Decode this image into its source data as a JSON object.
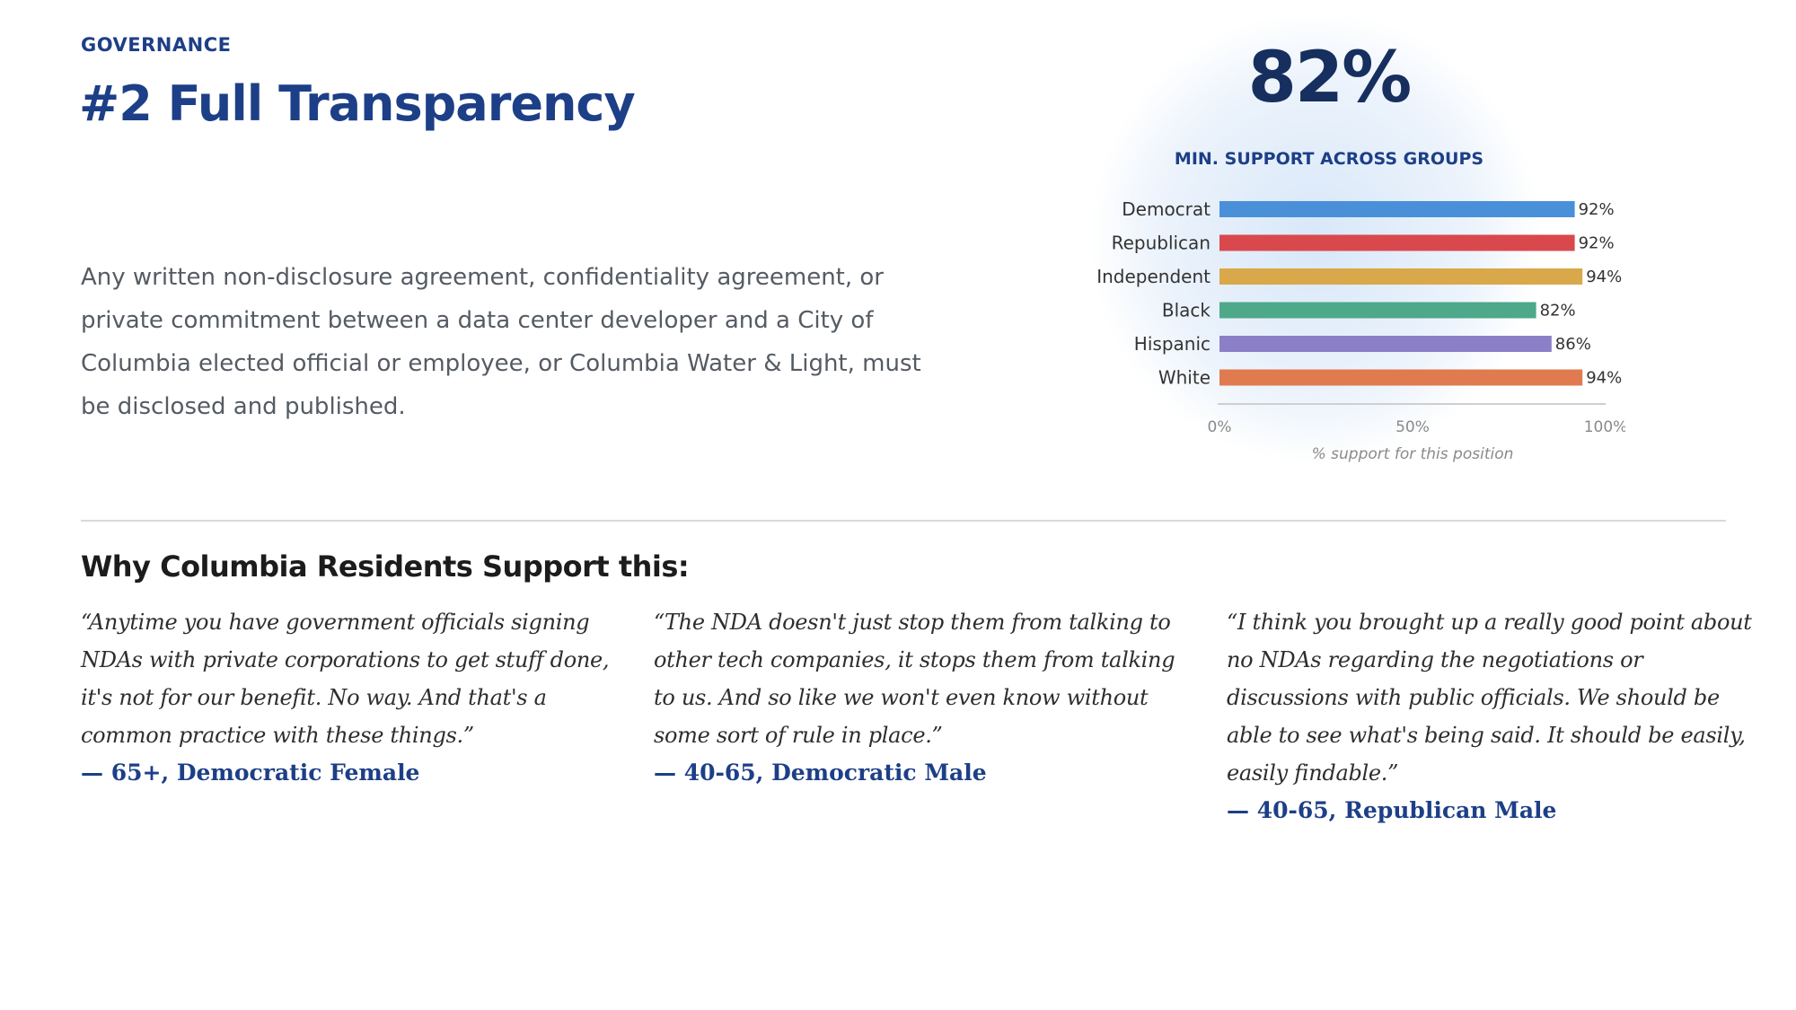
{
  "header": {
    "eyebrow": "GOVERNANCE",
    "title": "#2 Full Transparency"
  },
  "description": "Any written non-disclosure agreement, confidentiality agreement, or private commitment between a data center developer and a City of Columbia elected official or employee, or Columbia Water & Light, must be disclosed and published.",
  "stat": {
    "value": "82%",
    "label": "MIN. SUPPORT ACROSS GROUPS"
  },
  "colors": {
    "primary": "#1d3f87",
    "stat": "#172f5e"
  },
  "chart_data": {
    "type": "bar",
    "orientation": "horizontal",
    "categories": [
      "Democrat",
      "Republican",
      "Independent",
      "Black",
      "Hispanic",
      "White"
    ],
    "values": [
      92,
      92,
      94,
      82,
      86,
      94
    ],
    "value_labels": [
      "92%",
      "92%",
      "94%",
      "82%",
      "86%",
      "94%"
    ],
    "colors": [
      "#4a90d9",
      "#d9484c",
      "#d9a84a",
      "#4ea88a",
      "#8b7fc7",
      "#df7b4f"
    ],
    "xlim": [
      0,
      100
    ],
    "xticks": [
      0,
      50,
      100
    ],
    "xtick_labels": [
      "0%",
      "50%",
      "100%"
    ],
    "xlabel": "% support for this position",
    "grid": false,
    "legend": "none"
  },
  "why": {
    "heading": "Why Columbia Residents Support this:",
    "quotes": [
      {
        "text": "“Anytime you have government officials signing NDAs with private corporations to get stuff done, it's not for our benefit. No way. And that's a common practice with these things.”",
        "attribution": "— 65+, Democratic Female"
      },
      {
        "text": "“The NDA doesn't just stop them from talking to other tech companies, it stops them from talking to us. And so like we won't even know without some sort of rule in place.”",
        "attribution": "— 40-65, Democratic Male"
      },
      {
        "text": "“I think you brought up a really good point about no NDAs regarding the negotiations or discussions with public officials. We should be able to see what's being said. It should be easily, easily findable.”",
        "attribution": "— 40-65, Republican Male"
      }
    ]
  }
}
